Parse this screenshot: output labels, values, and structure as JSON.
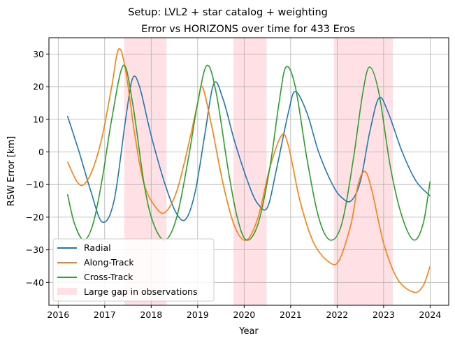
{
  "chart_data": {
    "type": "line",
    "suptitle": "Setup: LVL2 + star catalog + weighting",
    "title": "Error vs HORIZONS over time for 433 Eros",
    "xlabel": "Year",
    "ylabel": "RSW Error [km]",
    "xlim": [
      2015.8,
      2024.4
    ],
    "ylim": [
      -47,
      35
    ],
    "xticks": [
      2016,
      2017,
      2018,
      2019,
      2020,
      2021,
      2022,
      2023,
      2024
    ],
    "yticks": [
      -40,
      -30,
      -20,
      -10,
      0,
      10,
      20,
      30
    ],
    "grid": true,
    "legend_position": "lower-left",
    "gap_regions": [
      [
        2017.42,
        2018.33
      ],
      [
        2019.77,
        2020.48
      ],
      [
        2021.93,
        2023.2
      ]
    ],
    "gap_color": "#ff9aa8",
    "series": [
      {
        "name": "Radial",
        "color": "#1f77b4",
        "points": [
          [
            2016.2,
            11
          ],
          [
            2016.45,
            0
          ],
          [
            2016.7,
            -12
          ],
          [
            2016.95,
            -21.5
          ],
          [
            2017.2,
            -15
          ],
          [
            2017.45,
            10
          ],
          [
            2017.6,
            22.5
          ],
          [
            2017.75,
            20
          ],
          [
            2018.0,
            5
          ],
          [
            2018.3,
            -10
          ],
          [
            2018.55,
            -19
          ],
          [
            2018.75,
            -20.5
          ],
          [
            2018.95,
            -12
          ],
          [
            2019.15,
            5
          ],
          [
            2019.35,
            21
          ],
          [
            2019.55,
            16
          ],
          [
            2019.8,
            3
          ],
          [
            2020.1,
            -10
          ],
          [
            2020.3,
            -16
          ],
          [
            2020.5,
            -17
          ],
          [
            2020.7,
            -5
          ],
          [
            2020.95,
            12
          ],
          [
            2021.1,
            18.5
          ],
          [
            2021.35,
            12
          ],
          [
            2021.6,
            0
          ],
          [
            2021.9,
            -10
          ],
          [
            2022.1,
            -14
          ],
          [
            2022.3,
            -15
          ],
          [
            2022.5,
            -9
          ],
          [
            2022.7,
            6
          ],
          [
            2022.9,
            16.5
          ],
          [
            2023.1,
            12
          ],
          [
            2023.4,
            0
          ],
          [
            2023.7,
            -9
          ],
          [
            2024.0,
            -13.5
          ]
        ]
      },
      {
        "name": "Along-Track",
        "color": "#ff7f0e",
        "points": [
          [
            2016.2,
            -3
          ],
          [
            2016.4,
            -9
          ],
          [
            2016.55,
            -10
          ],
          [
            2016.75,
            -5
          ],
          [
            2016.95,
            5
          ],
          [
            2017.15,
            20
          ],
          [
            2017.3,
            31.5
          ],
          [
            2017.45,
            25
          ],
          [
            2017.65,
            5
          ],
          [
            2017.85,
            -10
          ],
          [
            2018.1,
            -17
          ],
          [
            2018.3,
            -18.5
          ],
          [
            2018.55,
            -12
          ],
          [
            2018.8,
            2
          ],
          [
            2019.0,
            15
          ],
          [
            2019.1,
            20
          ],
          [
            2019.3,
            8
          ],
          [
            2019.55,
            -10
          ],
          [
            2019.8,
            -23
          ],
          [
            2020.05,
            -27
          ],
          [
            2020.3,
            -20
          ],
          [
            2020.55,
            -5
          ],
          [
            2020.8,
            5
          ],
          [
            2020.95,
            2
          ],
          [
            2021.2,
            -15
          ],
          [
            2021.5,
            -28
          ],
          [
            2021.85,
            -34
          ],
          [
            2022.05,
            -33
          ],
          [
            2022.3,
            -22
          ],
          [
            2022.45,
            -10
          ],
          [
            2022.6,
            -6
          ],
          [
            2022.75,
            -12
          ],
          [
            2023.0,
            -28
          ],
          [
            2023.3,
            -39
          ],
          [
            2023.65,
            -43
          ],
          [
            2023.85,
            -41
          ],
          [
            2024.0,
            -35
          ]
        ]
      },
      {
        "name": "Cross-Track",
        "color": "#2ca02c",
        "points": [
          [
            2016.2,
            -13
          ],
          [
            2016.35,
            -22
          ],
          [
            2016.55,
            -27
          ],
          [
            2016.75,
            -22
          ],
          [
            2016.95,
            -8
          ],
          [
            2017.15,
            10
          ],
          [
            2017.4,
            26.5
          ],
          [
            2017.6,
            15
          ],
          [
            2017.85,
            -10
          ],
          [
            2018.05,
            -22
          ],
          [
            2018.3,
            -27
          ],
          [
            2018.55,
            -20
          ],
          [
            2018.8,
            -2
          ],
          [
            2019.0,
            15
          ],
          [
            2019.2,
            26.5
          ],
          [
            2019.4,
            18
          ],
          [
            2019.65,
            -5
          ],
          [
            2019.85,
            -20
          ],
          [
            2020.05,
            -27
          ],
          [
            2020.3,
            -22
          ],
          [
            2020.55,
            -5
          ],
          [
            2020.75,
            15
          ],
          [
            2020.9,
            26
          ],
          [
            2021.1,
            20
          ],
          [
            2021.35,
            -2
          ],
          [
            2021.6,
            -20
          ],
          [
            2021.85,
            -27
          ],
          [
            2022.1,
            -22
          ],
          [
            2022.35,
            -2
          ],
          [
            2022.55,
            18
          ],
          [
            2022.7,
            26
          ],
          [
            2022.9,
            18
          ],
          [
            2023.15,
            -5
          ],
          [
            2023.4,
            -20
          ],
          [
            2023.65,
            -27
          ],
          [
            2023.85,
            -22
          ],
          [
            2024.0,
            -9
          ]
        ]
      }
    ],
    "gap_label": "Large gap in observations"
  }
}
